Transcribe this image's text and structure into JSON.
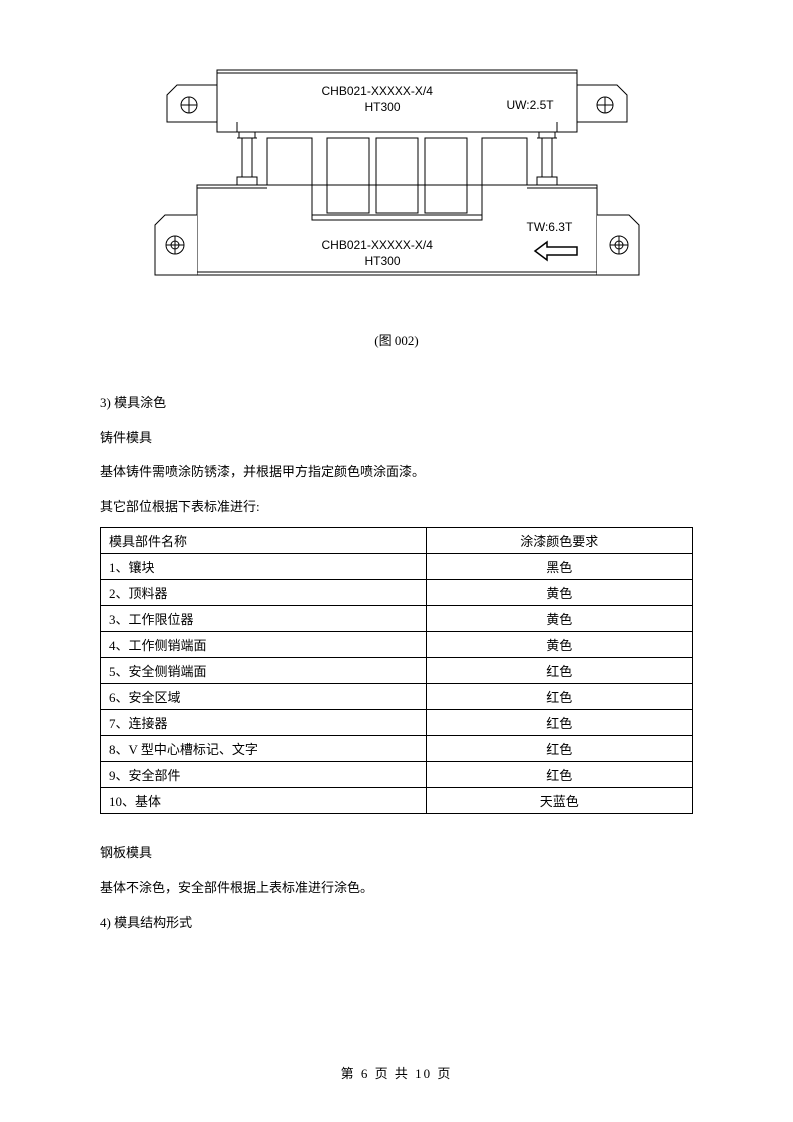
{
  "diagram": {
    "upper_part_label_1": "CHB021-XXXXX-X/4",
    "upper_part_label_2": "HT300",
    "upper_right_label": "UW:2.5T",
    "lower_part_label_1": "CHB021-XXXXX-X/4",
    "lower_part_label_2": "HT300",
    "lower_right_label": "TW:6.3T",
    "stroke_color": "#000000",
    "background_color": "#ffffff",
    "line_width": 1
  },
  "figure_caption": "(图 002)",
  "body": {
    "section_3_title": "3) 模具涂色",
    "cast_mold_title": "铸件模具",
    "cast_mold_text_1": "基体铸件需喷涂防锈漆，并根据甲方指定颜色喷涂面漆。",
    "cast_mold_text_2": "其它部位根据下表标准进行:",
    "steel_mold_title": "钢板模具",
    "steel_mold_text": "基体不涂色，安全部件根据上表标准进行涂色。",
    "section_4_title": "4) 模具结构形式"
  },
  "color_table": {
    "columns": [
      "模具部件名称",
      "涂漆颜色要求"
    ],
    "rows": [
      [
        "1、镶块",
        "黑色"
      ],
      [
        "2、顶料器",
        "黄色"
      ],
      [
        "3、工作限位器",
        "黄色"
      ],
      [
        "4、工作侧销端面",
        "黄色"
      ],
      [
        "5、安全侧销端面",
        "红色"
      ],
      [
        "6、安全区域",
        "红色"
      ],
      [
        "7、连接器",
        "红色"
      ],
      [
        "8、V 型中心槽标记、文字",
        "红色"
      ],
      [
        "9、安全部件",
        "红色"
      ],
      [
        "10、基体",
        "天蓝色"
      ]
    ]
  },
  "footer": {
    "page_current": "6",
    "page_total": "10",
    "prefix": "第",
    "mid": "页 共",
    "suffix": "页"
  }
}
